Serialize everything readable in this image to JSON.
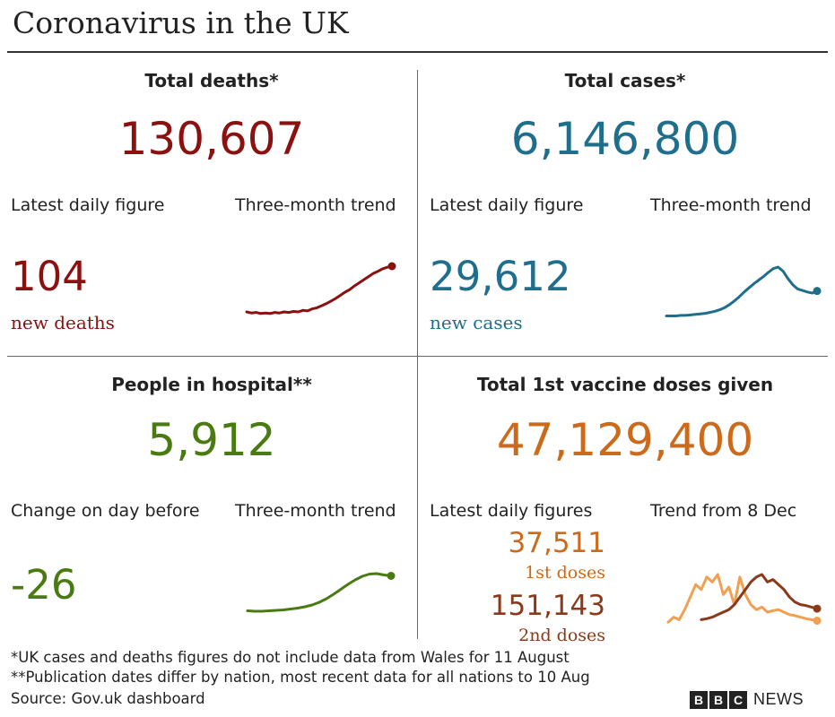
{
  "title": "Coronavirus in the UK",
  "colors": {
    "deaths": "#8b1010",
    "cases": "#1f6e8c",
    "hospital": "#4a7a12",
    "vaccine": "#cc6a1c",
    "dose1_line": "#f0a050",
    "dose2": "#8a3a1a"
  },
  "deaths": {
    "title": "Total deaths*",
    "total": "130,607",
    "latest_label": "Latest daily figure",
    "trend_label": "Three-month trend",
    "daily": "104",
    "daily_sub": "new deaths"
  },
  "cases": {
    "title": "Total cases*",
    "total": "6,146,800",
    "latest_label": "Latest daily figure",
    "trend_label": "Three-month trend",
    "daily": "29,612",
    "daily_sub": "new cases"
  },
  "hospital": {
    "title": "People in hospital**",
    "total": "5,912",
    "latest_label": "Change on day before",
    "trend_label": "Three-month trend",
    "daily": "-26"
  },
  "vaccine": {
    "title": "Total 1st vaccine doses given",
    "total": "47,129,400",
    "latest_label": "Latest daily figures",
    "trend_label": "Trend from 8 Dec",
    "dose1_value": "37,511",
    "dose1_label": "1st doses",
    "dose2_value": "151,143",
    "dose2_label": "2nd doses"
  },
  "footnotes": [
    "*UK cases and deaths figures do not include data from Wales for 11 August",
    "**Publication dates differ by nation, most recent data for all nations to 10 Aug",
    "Source: Gov.uk dashboard"
  ],
  "brand": {
    "letters": [
      "B",
      "B",
      "C"
    ],
    "news": "NEWS"
  },
  "chart_data": [
    {
      "type": "line",
      "series": [
        {
          "values": [
            12,
            10,
            11,
            9,
            10,
            9,
            11,
            10,
            12,
            11,
            13,
            12,
            15,
            14,
            18,
            20,
            24,
            28,
            33,
            38,
            44,
            50,
            55,
            62,
            68,
            74,
            80,
            86,
            90,
            95,
            98,
            100
          ]
        }
      ]
    },
    {
      "type": "line",
      "series": [
        {
          "values": [
            6,
            6,
            6,
            7,
            7,
            8,
            9,
            10,
            11,
            13,
            15,
            18,
            22,
            28,
            35,
            43,
            52,
            60,
            68,
            75,
            82,
            90,
            97,
            100,
            92,
            78,
            66,
            58,
            55,
            52,
            50,
            54
          ]
        }
      ]
    },
    {
      "type": "line",
      "series": [
        {
          "values": [
            15,
            14,
            14,
            15,
            16,
            17,
            19,
            21,
            24,
            28,
            34,
            42,
            52,
            63,
            74,
            84,
            92,
            97,
            98,
            95,
            93
          ]
        }
      ]
    },
    {
      "type": "line",
      "series": [
        {
          "name": "1st doses",
          "values": [
            5,
            15,
            10,
            30,
            55,
            80,
            70,
            95,
            85,
            100,
            60,
            75,
            40,
            95,
            60,
            40,
            30,
            35,
            25,
            28,
            30,
            25,
            20,
            18,
            15,
            12,
            10,
            8
          ]
        },
        {
          "name": "2nd doses",
          "values": [
            null,
            null,
            null,
            null,
            null,
            null,
            10,
            12,
            15,
            20,
            25,
            30,
            40,
            55,
            70,
            85,
            95,
            100,
            85,
            90,
            80,
            70,
            55,
            45,
            40,
            38,
            35,
            32
          ]
        }
      ]
    }
  ]
}
